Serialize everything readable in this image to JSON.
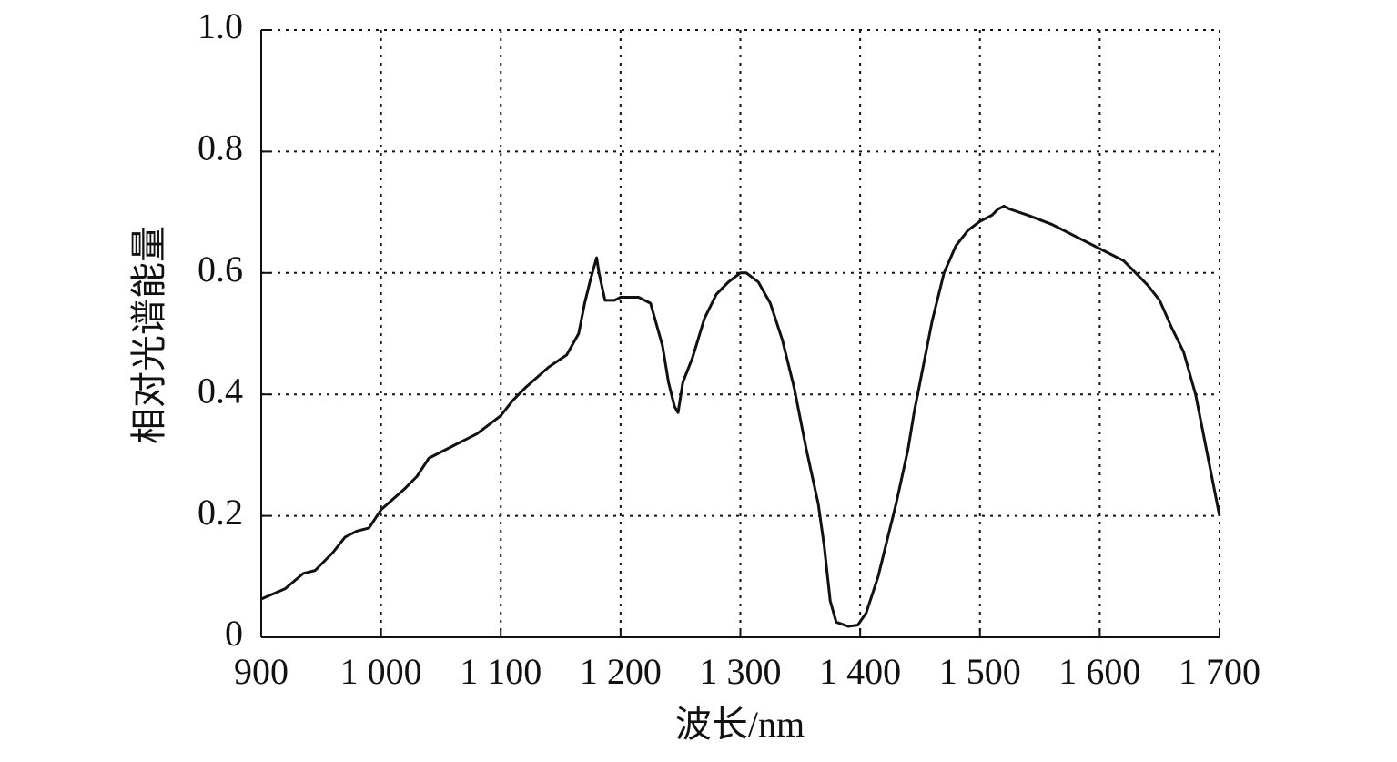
{
  "chart_data": {
    "type": "line",
    "xlabel": "波长/nm",
    "ylabel": "相对光谱能量",
    "xlim": [
      900,
      1700
    ],
    "ylim": [
      0,
      1
    ],
    "xticks": [
      900,
      {
        "value": 1000,
        "label": "1 000"
      },
      {
        "value": 1100,
        "label": "1 100"
      },
      {
        "value": 1200,
        "label": "1 200"
      },
      {
        "value": 1300,
        "label": "1 300"
      },
      {
        "value": 1400,
        "label": "1 400"
      },
      {
        "value": 1500,
        "label": "1 500"
      },
      {
        "value": 1600,
        "label": "1 600"
      },
      {
        "value": 1700,
        "label": "1 700"
      }
    ],
    "yticks": [
      0,
      0.2,
      0.4,
      0.6,
      0.8,
      {
        "value": 1,
        "label": "1.0"
      }
    ],
    "grid": true,
    "color": "#111111",
    "x": [
      900,
      920,
      935,
      945,
      960,
      970,
      980,
      990,
      1000,
      1020,
      1030,
      1040,
      1060,
      1080,
      1100,
      1110,
      1120,
      1140,
      1155,
      1165,
      1170,
      1175,
      1180,
      1182,
      1187,
      1195,
      1200,
      1215,
      1225,
      1235,
      1240,
      1245,
      1248,
      1252,
      1260,
      1270,
      1280,
      1290,
      1300,
      1305,
      1315,
      1325,
      1335,
      1345,
      1355,
      1365,
      1370,
      1375,
      1380,
      1390,
      1398,
      1405,
      1415,
      1420,
      1430,
      1440,
      1445,
      1460,
      1470,
      1480,
      1490,
      1500,
      1510,
      1515,
      1520,
      1525,
      1540,
      1560,
      1580,
      1600,
      1620,
      1640,
      1650,
      1660,
      1670,
      1680,
      1690,
      1700
    ],
    "values": [
      0.063,
      0.08,
      0.105,
      0.11,
      0.14,
      0.165,
      0.175,
      0.18,
      0.21,
      0.245,
      0.265,
      0.295,
      0.315,
      0.335,
      0.365,
      0.39,
      0.41,
      0.445,
      0.465,
      0.5,
      0.55,
      0.59,
      0.625,
      0.6,
      0.555,
      0.555,
      0.56,
      0.56,
      0.55,
      0.48,
      0.42,
      0.38,
      0.37,
      0.42,
      0.46,
      0.525,
      0.565,
      0.585,
      0.6,
      0.6,
      0.585,
      0.55,
      0.49,
      0.41,
      0.31,
      0.22,
      0.15,
      0.06,
      0.025,
      0.018,
      0.02,
      0.04,
      0.1,
      0.14,
      0.22,
      0.31,
      0.37,
      0.52,
      0.6,
      0.645,
      0.67,
      0.685,
      0.695,
      0.705,
      0.71,
      0.705,
      0.695,
      0.68,
      0.66,
      0.64,
      0.62,
      0.58,
      0.555,
      0.51,
      0.47,
      0.4,
      0.3,
      0.2
    ]
  }
}
